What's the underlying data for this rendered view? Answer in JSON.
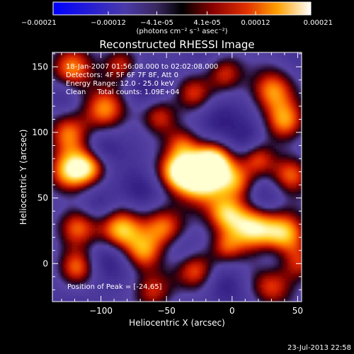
{
  "chart_data": {
    "type": "heatmap",
    "title": "Reconstructed RHESSI Image",
    "xlabel": "Heliocentric X (arcsec)",
    "ylabel": "Heliocentric Y (arcsec)",
    "xlim": [
      -137,
      53
    ],
    "ylim": [
      -29,
      161
    ],
    "xticks": [
      -100,
      -50,
      0,
      50
    ],
    "yticks": [
      0,
      50,
      100,
      150
    ],
    "colorbar": {
      "range": [
        -0.00021,
        0.00021
      ],
      "ticks": [
        -0.00021,
        -0.00012,
        -4.1e-05,
        4.1e-05,
        0.00012,
        0.00021
      ],
      "tick_labels": [
        "-0.00021",
        "-0.00012",
        "-4.1e-05",
        "4.1e-05",
        "0.00012",
        "0.00021"
      ],
      "unit_label": "(photons cm⁻² s⁻¹ asec⁻²)"
    },
    "annotations": [
      "18-Jan-2007 01:56:08.000 to 02:02:08.000",
      "Detectors: 4F 5F 6F 7F 8F, Att 0",
      "Energy Range: 12.0 - 25.0 keV",
      "Clean     Total counts: 1.09E+04"
    ],
    "peak_label": "Position of Peak = [-24,65]",
    "peak": [
      -24,
      65
    ],
    "footer_date": "23-Jul-2013 22:58",
    "blobs": [
      {
        "x": -24,
        "y": 65,
        "w": 14,
        "a": 1.0
      },
      {
        "x": -14,
        "y": 78,
        "w": 11,
        "a": 0.85
      },
      {
        "x": -42,
        "y": 70,
        "w": 11,
        "a": 0.7
      },
      {
        "x": 4,
        "y": 62,
        "w": 10,
        "a": 0.55
      },
      {
        "x": -124,
        "y": 70,
        "w": 12,
        "a": 0.8
      },
      {
        "x": -108,
        "y": 74,
        "w": 10,
        "a": 0.6
      },
      {
        "x": -125,
        "y": 100,
        "w": 11,
        "a": 0.65
      },
      {
        "x": -98,
        "y": 118,
        "w": 12,
        "a": 0.7
      },
      {
        "x": -55,
        "y": 112,
        "w": 10,
        "a": 0.6
      },
      {
        "x": -38,
        "y": 92,
        "w": 9,
        "a": 0.45
      },
      {
        "x": -30,
        "y": 130,
        "w": 10,
        "a": 0.55
      },
      {
        "x": -5,
        "y": 145,
        "w": 10,
        "a": 0.55
      },
      {
        "x": 30,
        "y": 132,
        "w": 12,
        "a": 0.75
      },
      {
        "x": 40,
        "y": 108,
        "w": 11,
        "a": 0.7
      },
      {
        "x": 45,
        "y": 68,
        "w": 11,
        "a": 0.7
      },
      {
        "x": 20,
        "y": 80,
        "w": 9,
        "a": 0.5
      },
      {
        "x": -122,
        "y": 148,
        "w": 12,
        "a": 0.7
      },
      {
        "x": -85,
        "y": 152,
        "w": 10,
        "a": 0.6
      },
      {
        "x": 15,
        "y": 28,
        "w": 13,
        "a": 0.95
      },
      {
        "x": 40,
        "y": 22,
        "w": 12,
        "a": 0.8
      },
      {
        "x": -5,
        "y": 38,
        "w": 10,
        "a": 0.6
      },
      {
        "x": -52,
        "y": 28,
        "w": 12,
        "a": 0.75
      },
      {
        "x": -85,
        "y": 25,
        "w": 12,
        "a": 0.85
      },
      {
        "x": -118,
        "y": 28,
        "w": 11,
        "a": 0.7
      },
      {
        "x": -68,
        "y": 8,
        "w": 10,
        "a": 0.6
      },
      {
        "x": -28,
        "y": -5,
        "w": 11,
        "a": 0.7
      },
      {
        "x": -5,
        "y": 12,
        "w": 9,
        "a": 0.5
      },
      {
        "x": -118,
        "y": -3,
        "w": 10,
        "a": 0.6
      },
      {
        "x": -60,
        "y": -22,
        "w": 11,
        "a": 0.55
      },
      {
        "x": 30,
        "y": -18,
        "w": 12,
        "a": 0.6
      },
      {
        "x": 52,
        "y": 0,
        "w": 10,
        "a": 0.55
      },
      {
        "x": -100,
        "y": 88,
        "w": 9,
        "a": -0.6
      },
      {
        "x": -70,
        "y": 135,
        "w": 10,
        "a": -0.55
      },
      {
        "x": -10,
        "y": 110,
        "w": 11,
        "a": -0.65
      },
      {
        "x": 10,
        "y": 95,
        "w": 10,
        "a": -0.6
      },
      {
        "x": 25,
        "y": 50,
        "w": 10,
        "a": -0.55
      },
      {
        "x": -70,
        "y": 55,
        "w": 11,
        "a": -0.6
      },
      {
        "x": -100,
        "y": 45,
        "w": 10,
        "a": -0.55
      },
      {
        "x": -95,
        "y": 5,
        "w": 11,
        "a": -0.6
      },
      {
        "x": -40,
        "y": 10,
        "w": 10,
        "a": -0.55
      },
      {
        "x": 30,
        "y": 5,
        "w": 10,
        "a": -0.5
      },
      {
        "x": -5,
        "y": -18,
        "w": 11,
        "a": -0.55
      },
      {
        "x": -130,
        "y": 130,
        "w": 8,
        "a": -0.4
      }
    ]
  }
}
